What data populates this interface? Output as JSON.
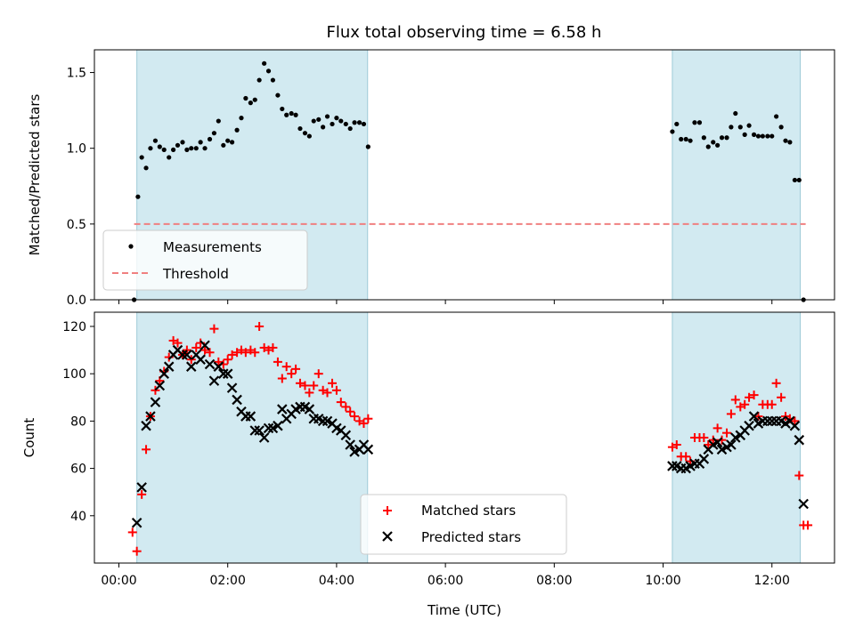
{
  "chart_data": [
    {
      "type": "scatter",
      "title": "Flux total observing time = 6.58 h",
      "xlabel": "",
      "ylabel": "Matched/Predicted stars",
      "ylim": [
        0,
        1.65
      ],
      "xlim": [
        -0.45,
        13.15
      ],
      "yticks": [
        {
          "v": 0,
          "label": "0.0"
        },
        {
          "v": 0.5,
          "label": "0.5"
        },
        {
          "v": 1.0,
          "label": "1.0"
        },
        {
          "v": 1.5,
          "label": "1.5"
        }
      ],
      "shaded_intervals": [
        [
          0.33,
          4.57
        ],
        [
          10.17,
          12.52
        ]
      ],
      "shade_color": "#add8e6",
      "legend": {
        "position": "lower-left"
      },
      "series": [
        {
          "name": "Measurements",
          "kind": "points",
          "color": "#000000",
          "x": [
            0.28,
            0.35,
            0.42,
            0.5,
            0.58,
            0.67,
            0.75,
            0.83,
            0.92,
            1.0,
            1.08,
            1.17,
            1.25,
            1.33,
            1.42,
            1.5,
            1.58,
            1.67,
            1.75,
            1.83,
            1.92,
            2.0,
            2.08,
            2.17,
            2.25,
            2.33,
            2.42,
            2.5,
            2.58,
            2.67,
            2.75,
            2.83,
            2.92,
            3.0,
            3.08,
            3.17,
            3.25,
            3.33,
            3.42,
            3.5,
            3.58,
            3.67,
            3.75,
            3.83,
            3.92,
            4.0,
            4.08,
            4.17,
            4.25,
            4.33,
            4.42,
            4.5,
            4.58,
            10.17,
            10.25,
            10.33,
            10.42,
            10.5,
            10.58,
            10.67,
            10.75,
            10.83,
            10.92,
            11.0,
            11.08,
            11.17,
            11.25,
            11.33,
            11.42,
            11.5,
            11.58,
            11.67,
            11.75,
            11.83,
            11.92,
            12.0,
            12.08,
            12.17,
            12.25,
            12.33,
            12.42,
            12.5,
            12.58
          ],
          "y": [
            0,
            0.68,
            0.94,
            0.87,
            1.0,
            1.05,
            1.01,
            0.99,
            0.94,
            0.99,
            1.02,
            1.04,
            0.99,
            1.0,
            1.0,
            1.04,
            1.0,
            1.06,
            1.1,
            1.18,
            1.02,
            1.05,
            1.04,
            1.12,
            1.2,
            1.33,
            1.3,
            1.32,
            1.45,
            1.56,
            1.51,
            1.45,
            1.35,
            1.26,
            1.22,
            1.23,
            1.22,
            1.13,
            1.1,
            1.08,
            1.18,
            1.19,
            1.14,
            1.21,
            1.16,
            1.2,
            1.18,
            1.16,
            1.13,
            1.17,
            1.17,
            1.16,
            1.01,
            1.11,
            1.16,
            1.06,
            1.06,
            1.05,
            1.17,
            1.17,
            1.07,
            1.01,
            1.04,
            1.02,
            1.07,
            1.07,
            1.14,
            1.23,
            1.14,
            1.09,
            1.15,
            1.09,
            1.08,
            1.08,
            1.08,
            1.08,
            1.21,
            1.14,
            1.05,
            1.04,
            0.79,
            0.79,
            0
          ]
        },
        {
          "name": "Threshold",
          "kind": "dashed-line",
          "color": "#f08080",
          "x": [
            0.28,
            12.62
          ],
          "y": [
            0.5,
            0.5
          ]
        }
      ]
    },
    {
      "type": "scatter",
      "title": "",
      "xlabel": "Time (UTC)",
      "ylabel": "Count",
      "ylim": [
        20,
        126
      ],
      "xlim": [
        -0.45,
        13.15
      ],
      "yticks": [
        {
          "v": 40,
          "label": "40"
        },
        {
          "v": 60,
          "label": "60"
        },
        {
          "v": 80,
          "label": "80"
        },
        {
          "v": 100,
          "label": "100"
        },
        {
          "v": 120,
          "label": "120"
        }
      ],
      "xticks": [
        {
          "v": 0,
          "label": "00:00"
        },
        {
          "v": 2,
          "label": "02:00"
        },
        {
          "v": 4,
          "label": "04:00"
        },
        {
          "v": 6,
          "label": "06:00"
        },
        {
          "v": 8,
          "label": "08:00"
        },
        {
          "v": 10,
          "label": "10:00"
        },
        {
          "v": 12,
          "label": "12:00"
        }
      ],
      "shaded_intervals": [
        [
          0.33,
          4.57
        ],
        [
          10.17,
          12.52
        ]
      ],
      "shade_color": "#add8e6",
      "legend": {
        "position": "bottom-center"
      },
      "series": [
        {
          "name": "Matched stars",
          "kind": "plus",
          "color": "#ff0000",
          "x": [
            0.25,
            0.33,
            0.42,
            0.5,
            0.58,
            0.67,
            0.75,
            0.83,
            0.92,
            1.0,
            1.08,
            1.17,
            1.25,
            1.33,
            1.42,
            1.5,
            1.58,
            1.67,
            1.75,
            1.83,
            1.92,
            2.0,
            2.08,
            2.17,
            2.25,
            2.33,
            2.42,
            2.5,
            2.58,
            2.67,
            2.75,
            2.83,
            2.92,
            3.0,
            3.08,
            3.17,
            3.25,
            3.33,
            3.42,
            3.5,
            3.58,
            3.67,
            3.75,
            3.83,
            3.92,
            4.0,
            4.08,
            4.17,
            4.25,
            4.33,
            4.42,
            4.5,
            4.58,
            10.17,
            10.25,
            10.33,
            10.42,
            10.5,
            10.58,
            10.67,
            10.75,
            10.83,
            10.92,
            11.0,
            11.08,
            11.17,
            11.25,
            11.33,
            11.42,
            11.5,
            11.58,
            11.67,
            11.75,
            11.83,
            11.92,
            12.0,
            12.08,
            12.17,
            12.25,
            12.33,
            12.42,
            12.5,
            12.58,
            12.66
          ],
          "y": [
            33,
            25,
            49,
            68,
            82,
            93,
            97,
            101,
            107,
            114,
            113,
            108,
            110,
            106,
            111,
            113,
            110,
            109,
            119,
            105,
            104,
            106,
            108,
            109,
            110,
            109,
            110,
            109,
            120,
            111,
            110,
            111,
            105,
            98,
            103,
            100,
            102,
            96,
            95,
            92,
            95,
            100,
            93,
            92,
            96,
            93,
            88,
            86,
            84,
            82,
            80,
            79,
            81,
            69,
            70,
            65,
            65,
            63,
            73,
            73,
            73,
            70,
            72,
            77,
            72,
            75,
            83,
            89,
            86,
            87,
            90,
            91,
            82,
            87,
            87,
            87,
            96,
            90,
            82,
            81,
            80,
            57,
            36,
            36
          ]
        },
        {
          "name": "Predicted stars",
          "kind": "x",
          "color": "#000000",
          "x": [
            0.33,
            0.42,
            0.5,
            0.58,
            0.67,
            0.75,
            0.83,
            0.92,
            1.0,
            1.08,
            1.17,
            1.25,
            1.33,
            1.42,
            1.5,
            1.58,
            1.67,
            1.75,
            1.83,
            1.92,
            2.0,
            2.08,
            2.17,
            2.25,
            2.33,
            2.42,
            2.5,
            2.58,
            2.67,
            2.75,
            2.83,
            2.92,
            3.0,
            3.08,
            3.17,
            3.25,
            3.33,
            3.42,
            3.5,
            3.58,
            3.67,
            3.75,
            3.83,
            3.92,
            4.0,
            4.08,
            4.17,
            4.25,
            4.33,
            4.42,
            4.5,
            4.58,
            10.17,
            10.25,
            10.33,
            10.42,
            10.5,
            10.58,
            10.67,
            10.75,
            10.83,
            10.92,
            11.0,
            11.08,
            11.17,
            11.25,
            11.33,
            11.42,
            11.5,
            11.58,
            11.67,
            11.75,
            11.83,
            11.92,
            12.0,
            12.08,
            12.17,
            12.25,
            12.33,
            12.42,
            12.5,
            12.58
          ],
          "y": [
            37,
            52,
            78,
            82,
            88,
            95,
            100,
            103,
            108,
            110,
            108,
            108,
            103,
            108,
            106,
            112,
            104,
            97,
            103,
            100,
            100,
            94,
            89,
            84,
            82,
            82,
            76,
            76,
            73,
            77,
            77,
            78,
            85,
            81,
            83,
            85,
            86,
            86,
            85,
            81,
            81,
            80,
            80,
            79,
            77,
            76,
            74,
            70,
            67,
            68,
            70,
            68,
            61,
            61,
            60,
            60,
            61,
            62,
            62,
            64,
            68,
            70,
            71,
            68,
            69,
            70,
            73,
            74,
            76,
            78,
            82,
            79,
            80,
            80,
            80,
            80,
            80,
            79,
            80,
            78,
            72,
            45
          ]
        }
      ]
    }
  ]
}
